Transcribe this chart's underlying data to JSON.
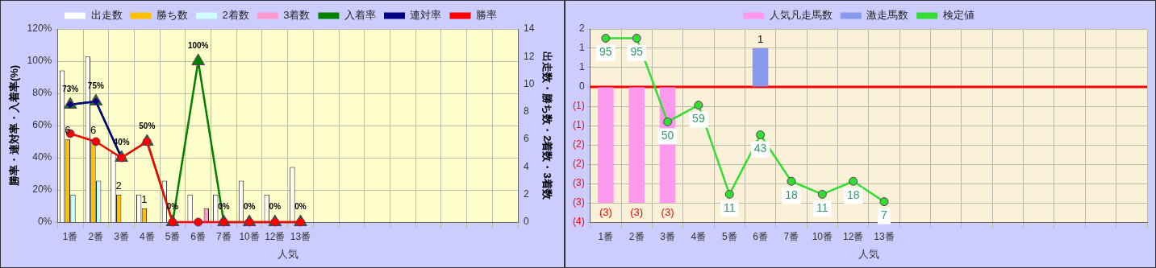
{
  "chart_data": [
    {
      "type": "bar",
      "xlabel": "人気",
      "ylabel": "勝率・連対率・入着率(%)",
      "y2label": "出走数・勝ち数・2着数・3着数",
      "categories": [
        "1番",
        "2番",
        "3番",
        "4番",
        "5番",
        "6番",
        "7番",
        "10番",
        "12番",
        "13番",
        null,
        null,
        null,
        null,
        null,
        null,
        null,
        null
      ],
      "ylim": [
        0,
        120
      ],
      "yticks": [
        {
          "value": 0,
          "label": "0%"
        },
        {
          "value": 20,
          "label": "20%"
        },
        {
          "value": 40,
          "label": "40%"
        },
        {
          "value": 60,
          "label": "60%"
        },
        {
          "value": 80,
          "label": "80%"
        },
        {
          "value": 100,
          "label": "100%"
        },
        {
          "value": 120,
          "label": "120%"
        }
      ],
      "y2lim": [
        0,
        14
      ],
      "y2ticks": [
        0,
        2,
        4,
        6,
        8,
        10,
        12,
        14
      ],
      "grid": true,
      "legend": "top",
      "series": [
        {
          "name": "出走数",
          "axis": "y2",
          "color": "#ffffff",
          "values": [
            11,
            12,
            5,
            2,
            3,
            2,
            2,
            3,
            2,
            4,
            null,
            null,
            null,
            null,
            null,
            null,
            null,
            null
          ]
        },
        {
          "name": "勝ち数",
          "axis": "y2",
          "color": "#ffc000",
          "values": [
            6,
            6,
            2,
            1,
            0,
            0,
            0,
            0,
            0,
            0,
            null,
            null,
            null,
            null,
            null,
            null,
            null,
            null
          ],
          "value_labels": [
            "6",
            "6",
            "2",
            "1",
            null,
            null,
            null,
            null,
            null,
            null,
            null,
            null,
            null,
            null,
            null,
            null,
            null,
            null
          ]
        },
        {
          "name": "2着数",
          "axis": "y2",
          "color": "#ccffff",
          "values": [
            2,
            3,
            0,
            0,
            0,
            0,
            0,
            0,
            0,
            0,
            null,
            null,
            null,
            null,
            null,
            null,
            null,
            null
          ]
        },
        {
          "name": "3着数",
          "axis": "y2",
          "color": "#ff99cc",
          "values": [
            0,
            0,
            0,
            0,
            0,
            1,
            0,
            0,
            0,
            0,
            null,
            null,
            null,
            null,
            null,
            null,
            null,
            null
          ]
        },
        {
          "name": "入着率",
          "type": "line",
          "marker": "triangle",
          "color": "#008000",
          "values": [
            73,
            75,
            40,
            50,
            0,
            100,
            0,
            0,
            0,
            0,
            null,
            null,
            null,
            null,
            null,
            null,
            null,
            null
          ],
          "value_labels": [
            "73%",
            "75%",
            "40%",
            "50%",
            "0%",
            "100%",
            "0%",
            "0%",
            "0%",
            "0%",
            null,
            null,
            null,
            null,
            null,
            null,
            null,
            null
          ]
        },
        {
          "name": "連対率",
          "type": "line",
          "marker": "diamond",
          "color": "#000080",
          "values": [
            73,
            75,
            40,
            null,
            null,
            null,
            null,
            null,
            null,
            null,
            null,
            null,
            null,
            null,
            null,
            null,
            null,
            null
          ]
        },
        {
          "name": "勝率",
          "type": "line",
          "marker": "circle",
          "color": "#ff0000",
          "values": [
            55,
            50,
            40,
            50,
            0,
            0,
            0,
            0,
            0,
            0,
            null,
            null,
            null,
            null,
            null,
            null,
            null,
            null
          ]
        }
      ]
    },
    {
      "type": "bar",
      "xlabel": "人気",
      "categories": [
        "1番",
        "2番",
        "3番",
        "4番",
        "5番",
        "6番",
        "7番",
        "10番",
        "12番",
        "13番",
        null,
        null,
        null,
        null,
        null,
        null,
        null,
        null
      ],
      "ylim": [
        -3.5,
        1.5
      ],
      "yticks": [
        {
          "value": 1.5,
          "label": "2"
        },
        {
          "value": 1,
          "label": "1"
        },
        {
          "value": 0.5,
          "label": "1"
        },
        {
          "value": 0,
          "label": "0"
        },
        {
          "value": -0.5,
          "label": "(1)"
        },
        {
          "value": -1,
          "label": "(1)"
        },
        {
          "value": -1.5,
          "label": "(2)"
        },
        {
          "value": -2,
          "label": "(2)"
        },
        {
          "value": -2.5,
          "label": "(3)"
        },
        {
          "value": -3,
          "label": "(3)"
        },
        {
          "value": -3.5,
          "label": "(4)"
        }
      ],
      "y2lim": [
        -4,
        100
      ],
      "tick_labels": "xy",
      "grid": true,
      "legend": "top",
      "ref_lines": [
        {
          "axis": "y",
          "value": 0,
          "color": "#ff0000"
        }
      ],
      "series": [
        {
          "name": "人気凡走馬数",
          "color": "#ff99ee",
          "values": [
            -3,
            -3,
            -3,
            null,
            null,
            null,
            null,
            null,
            null,
            null,
            null,
            null,
            null,
            null,
            null,
            null,
            null,
            null
          ],
          "value_labels": [
            "(3)",
            "(3)",
            "(3)",
            null,
            null,
            null,
            null,
            null,
            null,
            null,
            null,
            null,
            null,
            null,
            null,
            null,
            null,
            null
          ]
        },
        {
          "name": "激走馬数",
          "color": "#8899ee",
          "values": [
            null,
            null,
            null,
            null,
            null,
            1,
            null,
            null,
            null,
            null,
            null,
            null,
            null,
            null,
            null,
            null,
            null,
            null
          ],
          "value_labels": [
            null,
            null,
            null,
            null,
            null,
            "1",
            null,
            null,
            null,
            null,
            null,
            null,
            null,
            null,
            null,
            null,
            null,
            null
          ]
        },
        {
          "name": "検定値",
          "type": "line",
          "axis": "y2",
          "marker": "circle",
          "color": "#33dd33",
          "values": [
            95,
            95,
            50,
            59,
            11,
            43,
            18,
            11,
            18,
            7,
            null,
            null,
            null,
            null,
            null,
            null,
            null,
            null
          ],
          "value_labels": [
            "95",
            "95",
            "50",
            "59",
            "11",
            "43",
            "18",
            "11",
            "18",
            "7",
            null,
            null,
            null,
            null,
            null,
            null,
            null,
            null
          ]
        }
      ]
    }
  ]
}
